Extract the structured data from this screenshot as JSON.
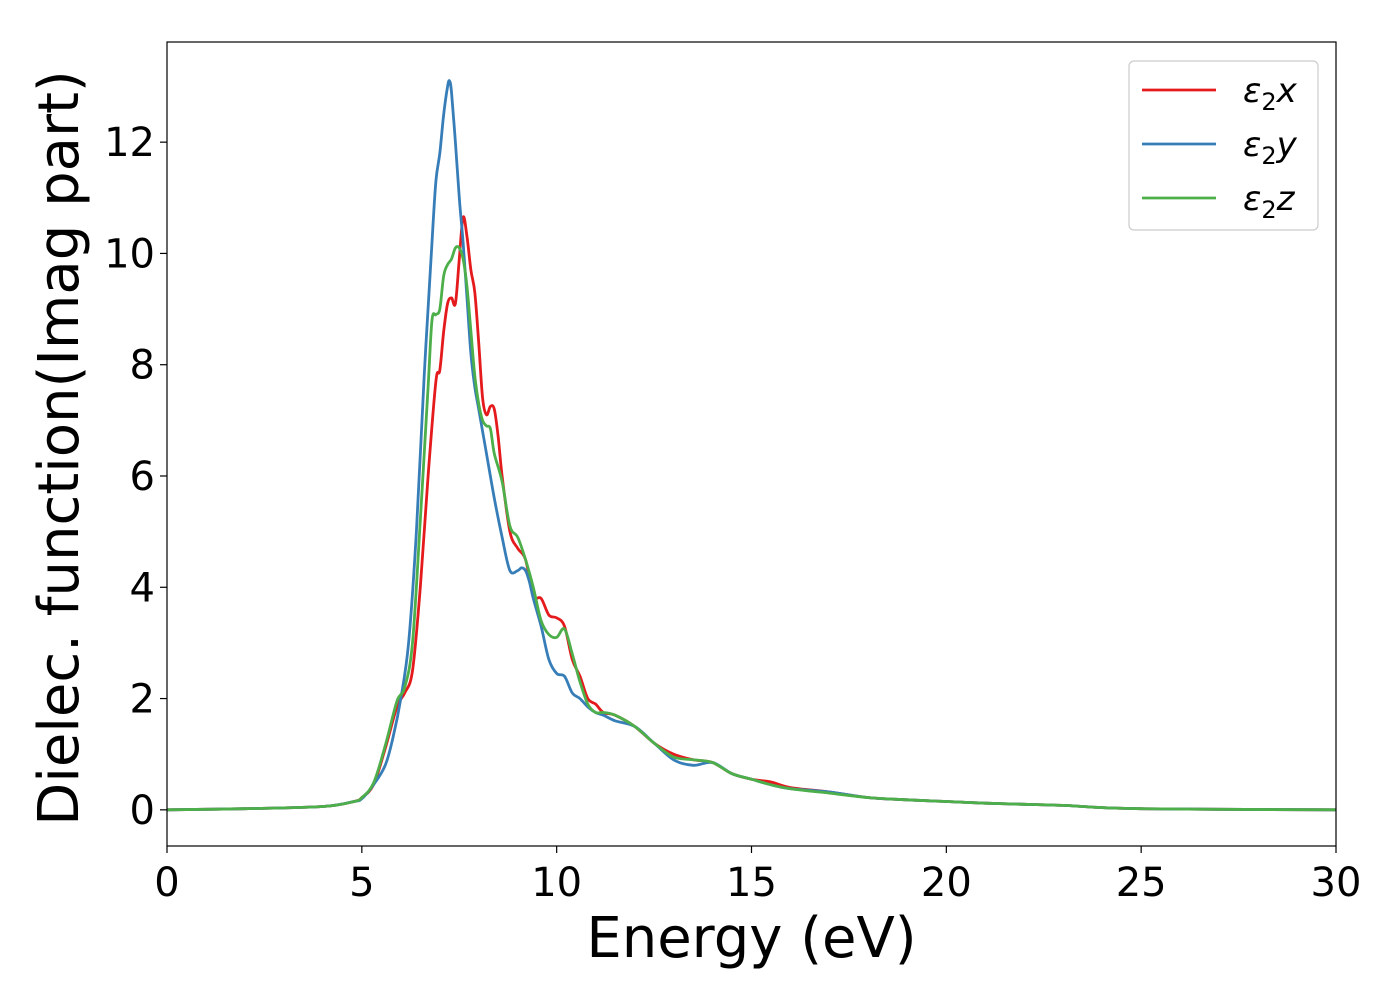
{
  "chart_data": {
    "type": "line",
    "title": "",
    "xlabel": "Energy (eV)",
    "ylabel": "Dielec. function(Imag part)",
    "xlim": [
      0,
      30
    ],
    "ylim": [
      -0.65,
      13.8
    ],
    "xticks": [
      0,
      5,
      10,
      15,
      20,
      25,
      30
    ],
    "yticks": [
      0,
      2,
      4,
      6,
      8,
      10,
      12
    ],
    "grid": false,
    "legend_position": "top-right",
    "series": [
      {
        "name": "ε₂x",
        "legend_base": "ε",
        "legend_sub": "2",
        "legend_suffix": "x",
        "color": "#e41a1c",
        "x": [
          0,
          2,
          4,
          4.8,
          5.0,
          5.3,
          5.6,
          5.9,
          6.1,
          6.3,
          6.5,
          6.7,
          6.9,
          7.0,
          7.1,
          7.2,
          7.3,
          7.4,
          7.5,
          7.6,
          7.7,
          7.8,
          7.9,
          8.0,
          8.1,
          8.2,
          8.3,
          8.4,
          8.5,
          8.6,
          8.8,
          9.0,
          9.2,
          9.4,
          9.6,
          9.8,
          10.0,
          10.2,
          10.4,
          10.6,
          10.8,
          11.0,
          11.2,
          11.5,
          12.0,
          12.5,
          13.0,
          13.5,
          14.0,
          14.5,
          15.0,
          15.5,
          16.0,
          17.0,
          18.0,
          19.0,
          20.0,
          21.0,
          22.0,
          23.0,
          24.0,
          25.0,
          27.0,
          30.0
        ],
        "y": [
          0,
          0.02,
          0.06,
          0.15,
          0.22,
          0.45,
          1.1,
          1.85,
          2.1,
          2.5,
          4.0,
          6.0,
          7.7,
          7.9,
          8.6,
          9.1,
          9.2,
          9.1,
          9.9,
          10.65,
          10.3,
          9.7,
          9.3,
          8.4,
          7.4,
          7.1,
          7.25,
          7.2,
          6.7,
          6.0,
          5.0,
          4.7,
          4.5,
          3.85,
          3.8,
          3.5,
          3.45,
          3.3,
          2.7,
          2.4,
          2.0,
          1.9,
          1.75,
          1.7,
          1.5,
          1.2,
          1.0,
          0.9,
          0.85,
          0.65,
          0.55,
          0.5,
          0.4,
          0.32,
          0.22,
          0.18,
          0.15,
          0.12,
          0.1,
          0.08,
          0.04,
          0.02,
          0.01,
          0.0
        ]
      },
      {
        "name": "ε₂y",
        "legend_base": "ε",
        "legend_sub": "2",
        "legend_suffix": "y",
        "color": "#377eb8",
        "x": [
          0,
          2,
          4,
          4.8,
          5.0,
          5.3,
          5.6,
          5.8,
          6.0,
          6.2,
          6.4,
          6.6,
          6.8,
          6.9,
          7.0,
          7.1,
          7.2,
          7.25,
          7.3,
          7.4,
          7.5,
          7.6,
          7.7,
          7.8,
          7.9,
          8.0,
          8.2,
          8.4,
          8.6,
          8.8,
          9.0,
          9.1,
          9.2,
          9.3,
          9.4,
          9.6,
          9.8,
          10.0,
          10.2,
          10.4,
          10.6,
          10.8,
          11.0,
          11.2,
          11.5,
          12.0,
          12.5,
          13.0,
          13.5,
          14.0,
          14.5,
          15.0,
          15.5,
          16.0,
          17.0,
          18.0,
          19.0,
          20.0,
          21.0,
          22.0,
          23.0,
          24.0,
          25.0,
          27.0,
          30.0
        ],
        "y": [
          0,
          0.02,
          0.06,
          0.15,
          0.2,
          0.45,
          0.8,
          1.3,
          2.0,
          3.0,
          5.0,
          7.8,
          10.2,
          11.3,
          11.8,
          12.5,
          13.0,
          13.1,
          12.9,
          12.0,
          11.0,
          10.2,
          9.2,
          8.2,
          7.6,
          7.2,
          6.4,
          5.6,
          4.9,
          4.3,
          4.3,
          4.35,
          4.3,
          4.1,
          3.8,
          3.3,
          2.7,
          2.45,
          2.4,
          2.1,
          2.0,
          1.85,
          1.75,
          1.7,
          1.6,
          1.5,
          1.2,
          0.9,
          0.8,
          0.85,
          0.65,
          0.55,
          0.45,
          0.38,
          0.32,
          0.22,
          0.18,
          0.15,
          0.12,
          0.1,
          0.08,
          0.04,
          0.02,
          0.01,
          0.0
        ]
      },
      {
        "name": "ε₂z",
        "legend_base": "ε",
        "legend_sub": "2",
        "legend_suffix": "z",
        "color": "#4daf4a",
        "x": [
          0,
          2,
          4,
          4.8,
          5.0,
          5.3,
          5.6,
          5.9,
          6.1,
          6.3,
          6.5,
          6.7,
          6.8,
          6.9,
          7.0,
          7.1,
          7.2,
          7.3,
          7.4,
          7.5,
          7.6,
          7.7,
          7.8,
          7.9,
          8.0,
          8.1,
          8.2,
          8.3,
          8.4,
          8.6,
          8.8,
          9.0,
          9.2,
          9.4,
          9.6,
          9.8,
          10.0,
          10.2,
          10.4,
          10.6,
          10.8,
          11.0,
          11.2,
          11.5,
          12.0,
          12.5,
          13.0,
          13.5,
          14.0,
          14.5,
          15.0,
          15.5,
          16.0,
          17.0,
          18.0,
          19.0,
          20.0,
          21.0,
          22.0,
          23.0,
          24.0,
          25.0,
          27.0,
          30.0
        ],
        "y": [
          0,
          0.02,
          0.06,
          0.15,
          0.22,
          0.48,
          1.15,
          1.95,
          2.2,
          3.0,
          5.2,
          7.6,
          8.8,
          8.9,
          9.0,
          9.6,
          9.8,
          9.9,
          10.1,
          10.1,
          9.9,
          9.4,
          8.6,
          7.8,
          7.3,
          7.0,
          6.9,
          6.85,
          6.4,
          5.9,
          5.1,
          4.9,
          4.5,
          4.0,
          3.4,
          3.15,
          3.1,
          3.25,
          2.8,
          2.3,
          1.9,
          1.75,
          1.75,
          1.7,
          1.5,
          1.2,
          0.95,
          0.9,
          0.85,
          0.65,
          0.55,
          0.45,
          0.38,
          0.3,
          0.22,
          0.18,
          0.15,
          0.12,
          0.1,
          0.08,
          0.04,
          0.02,
          0.01,
          0.0
        ]
      }
    ]
  }
}
